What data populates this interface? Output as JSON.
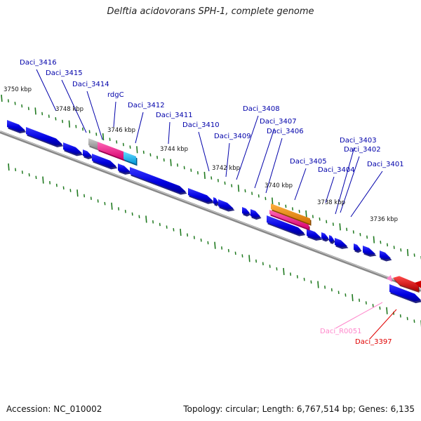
{
  "title": "Delftia acidovorans SPH-1, complete genome",
  "footer": {
    "accession_label": "Accession:",
    "accession": "NC_010002",
    "topology_label": "Topology:",
    "topology": "circular",
    "length_label": "Length:",
    "length": "6,767,514 bp",
    "genes_label": "Genes:",
    "genes": "6,135"
  },
  "colors": {
    "gene": "#0000e6",
    "rRNA": "#ff1493",
    "tRNA": "#00aaff",
    "misc": "#ff8c00",
    "pseudo": "#aaaaaa",
    "selected": "#e00000",
    "ncRNA": "#ff88cc",
    "label": "#0000aa",
    "tick": "#207a20",
    "backbone": "#888888"
  },
  "scale_ticks": [
    {
      "label": "3750 kbp"
    },
    {
      "label": "3748 kbp"
    },
    {
      "label": "3746 kbp"
    },
    {
      "label": "3744 kbp"
    },
    {
      "label": "3742 kbp"
    },
    {
      "label": "3740 kbp"
    },
    {
      "label": "3738 kbp"
    },
    {
      "label": "3736 kbp"
    }
  ],
  "gene_labels": [
    {
      "name": "Daci_3416",
      "kind": "gene"
    },
    {
      "name": "Daci_3415",
      "kind": "gene"
    },
    {
      "name": "Daci_3414",
      "kind": "gene"
    },
    {
      "name": "rdgC",
      "kind": "gene"
    },
    {
      "name": "Daci_3412",
      "kind": "gene"
    },
    {
      "name": "Daci_3411",
      "kind": "gene"
    },
    {
      "name": "Daci_3410",
      "kind": "gene"
    },
    {
      "name": "Daci_3409",
      "kind": "gene"
    },
    {
      "name": "Daci_3408",
      "kind": "gene"
    },
    {
      "name": "Daci_3407",
      "kind": "gene"
    },
    {
      "name": "Daci_3406",
      "kind": "gene"
    },
    {
      "name": "Daci_3405",
      "kind": "gene"
    },
    {
      "name": "Daci_3404",
      "kind": "gene"
    },
    {
      "name": "Daci_3403",
      "kind": "gene"
    },
    {
      "name": "Daci_3402",
      "kind": "gene"
    },
    {
      "name": "Daci_3401",
      "kind": "gene"
    },
    {
      "name": "Daci_R0051",
      "kind": "ncRNA"
    },
    {
      "name": "Daci_3397",
      "kind": "selected"
    }
  ]
}
